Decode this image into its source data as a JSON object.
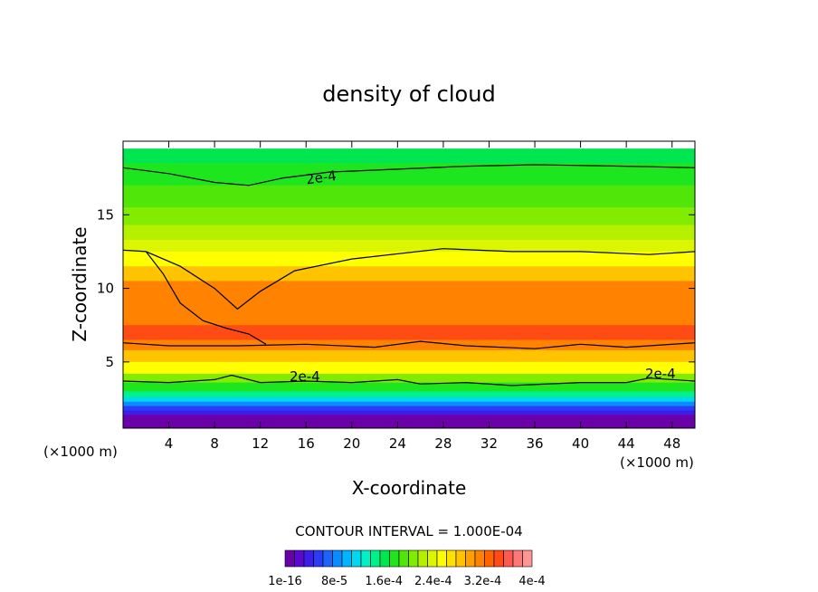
{
  "chart_data": {
    "type": "contour",
    "title": "density of cloud",
    "xlabel": "X-coordinate",
    "ylabel": "Z-coordinate",
    "x_unit_left": "(×1000 m)",
    "x_unit_right": "(×1000 m)",
    "xlim": [
      0,
      50
    ],
    "ylim": [
      0.5,
      20
    ],
    "xticks": [
      4,
      8,
      12,
      16,
      20,
      24,
      28,
      32,
      36,
      40,
      44,
      48
    ],
    "yticks": [
      5,
      10,
      15
    ],
    "contour_interval_text": "CONTOUR INTERVAL = 1.000E-04",
    "contour_labels": [
      "2e-4",
      "2e-4",
      "2e-4"
    ],
    "colorbar": {
      "labels": [
        "1e-16",
        "8e-5",
        "1.6e-4",
        "2.4e-4",
        "3.2e-4",
        "4e-4"
      ],
      "colors": [
        "#6a00a8",
        "#5a0ad0",
        "#3c1ee8",
        "#2a3cf4",
        "#1e64f8",
        "#0a8cff",
        "#00b4ff",
        "#00d8f0",
        "#00f0c8",
        "#00f08c",
        "#00e650",
        "#1ee61e",
        "#50e60a",
        "#82ec00",
        "#b4f000",
        "#dcf500",
        "#ffff00",
        "#ffe100",
        "#ffc300",
        "#ffa000",
        "#ff8200",
        "#ff6400",
        "#ff4b14",
        "#ff5a50",
        "#ff7878",
        "#ff9696"
      ]
    },
    "bands": [
      {
        "z": 19.5,
        "color": "#00e650"
      },
      {
        "z": 18.5,
        "color": "#1ee61e"
      },
      {
        "z": 17.0,
        "color": "#50e60a"
      },
      {
        "z": 15.5,
        "color": "#82ec00"
      },
      {
        "z": 14.3,
        "color": "#b4f000"
      },
      {
        "z": 13.3,
        "color": "#dcf500"
      },
      {
        "z": 12.5,
        "color": "#ffff00"
      },
      {
        "z": 11.5,
        "color": "#ffc300"
      },
      {
        "z": 10.5,
        "color": "#ff8200"
      },
      {
        "z": 7.5,
        "color": "#ff4b14"
      },
      {
        "z": 6.5,
        "color": "#ff8200"
      },
      {
        "z": 5.8,
        "color": "#ffc300"
      },
      {
        "z": 5.0,
        "color": "#ffff00"
      },
      {
        "z": 4.2,
        "color": "#82ec00"
      },
      {
        "z": 3.6,
        "color": "#1ee61e"
      },
      {
        "z": 3.0,
        "color": "#00f08c"
      },
      {
        "z": 2.6,
        "color": "#00d8f0"
      },
      {
        "z": 2.3,
        "color": "#0a8cff"
      },
      {
        "z": 2.0,
        "color": "#2a3cf4"
      },
      {
        "z": 1.7,
        "color": "#3c1ee8"
      },
      {
        "z": 1.4,
        "color": "#6a00a8"
      }
    ],
    "contours": [
      {
        "name": "upper",
        "points": [
          [
            0,
            18.2
          ],
          [
            4,
            17.8
          ],
          [
            8,
            17.2
          ],
          [
            11,
            17.0
          ],
          [
            14,
            17.5
          ],
          [
            18,
            17.9
          ],
          [
            24,
            18.1
          ],
          [
            30,
            18.3
          ],
          [
            36,
            18.4
          ],
          [
            44,
            18.3
          ],
          [
            50,
            18.2
          ]
        ]
      },
      {
        "name": "top-of-layer",
        "points": [
          [
            0,
            12.6
          ],
          [
            2,
            12.5
          ],
          [
            5,
            11.5
          ],
          [
            8,
            10.0
          ],
          [
            10,
            8.6
          ],
          [
            12,
            9.8
          ],
          [
            15,
            11.2
          ],
          [
            20,
            12.0
          ],
          [
            28,
            12.7
          ],
          [
            34,
            12.5
          ],
          [
            40,
            12.5
          ],
          [
            46,
            12.3
          ],
          [
            50,
            12.5
          ]
        ]
      },
      {
        "name": "bottom-of-layer",
        "points": [
          [
            0,
            6.3
          ],
          [
            4,
            6.1
          ],
          [
            10,
            6.1
          ],
          [
            16,
            6.2
          ],
          [
            22,
            6.0
          ],
          [
            26,
            6.4
          ],
          [
            30,
            6.1
          ],
          [
            36,
            5.9
          ],
          [
            40,
            6.2
          ],
          [
            44,
            6.0
          ],
          [
            50,
            6.3
          ]
        ]
      },
      {
        "name": "left-tongue",
        "points": [
          [
            2,
            12.5
          ],
          [
            3.5,
            11.0
          ],
          [
            5,
            9.0
          ],
          [
            7,
            7.8
          ],
          [
            9,
            7.3
          ],
          [
            11,
            6.9
          ],
          [
            12.5,
            6.2
          ]
        ]
      },
      {
        "name": "lower",
        "points": [
          [
            0,
            3.7
          ],
          [
            4,
            3.6
          ],
          [
            8,
            3.8
          ],
          [
            9.5,
            4.1
          ],
          [
            12,
            3.6
          ],
          [
            16,
            3.7
          ],
          [
            20,
            3.6
          ],
          [
            24,
            3.8
          ],
          [
            26,
            3.5
          ],
          [
            30,
            3.6
          ],
          [
            34,
            3.4
          ],
          [
            40,
            3.6
          ],
          [
            44,
            3.6
          ],
          [
            46,
            3.9
          ],
          [
            50,
            3.7
          ]
        ]
      }
    ]
  }
}
